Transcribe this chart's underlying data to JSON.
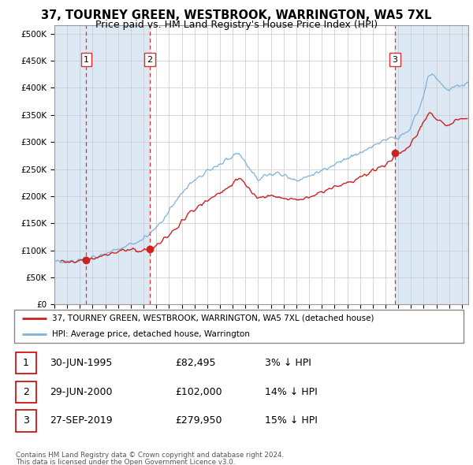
{
  "title": "37, TOURNEY GREEN, WESTBROOK, WARRINGTON, WA5 7XL",
  "subtitle": "Price paid vs. HM Land Registry's House Price Index (HPI)",
  "title_fontsize": 10.5,
  "subtitle_fontsize": 9,
  "ytick_values": [
    0,
    50000,
    100000,
    150000,
    200000,
    250000,
    300000,
    350000,
    400000,
    450000,
    500000
  ],
  "ylim": [
    0,
    515000
  ],
  "xlim_start": 1993.0,
  "xlim_end": 2025.5,
  "hpi_color": "#7fb2d9",
  "price_color": "#cc2222",
  "sale_marker_color": "#cc2222",
  "dashed_line_color": "#dd3333",
  "shade_color": "#dde8f5",
  "background_color": "#ffffff",
  "grid_color": "#c8c8c8",
  "sale_points": [
    {
      "date_num": 1995.5,
      "price": 82495,
      "label": "1"
    },
    {
      "date_num": 2000.5,
      "price": 102000,
      "label": "2"
    },
    {
      "date_num": 2019.75,
      "price": 279950,
      "label": "3"
    }
  ],
  "legend_entries": [
    "37, TOURNEY GREEN, WESTBROOK, WARRINGTON, WA5 7XL (detached house)",
    "HPI: Average price, detached house, Warrington"
  ],
  "table_rows": [
    {
      "num": "1",
      "date": "30-JUN-1995",
      "price": "£82,495",
      "hpi": "3% ↓ HPI"
    },
    {
      "num": "2",
      "date": "29-JUN-2000",
      "price": "£102,000",
      "hpi": "14% ↓ HPI"
    },
    {
      "num": "3",
      "date": "27-SEP-2019",
      "price": "£279,950",
      "hpi": "15% ↓ HPI"
    }
  ],
  "footnote1": "Contains HM Land Registry data © Crown copyright and database right 2024.",
  "footnote2": "This data is licensed under the Open Government Licence v3.0."
}
